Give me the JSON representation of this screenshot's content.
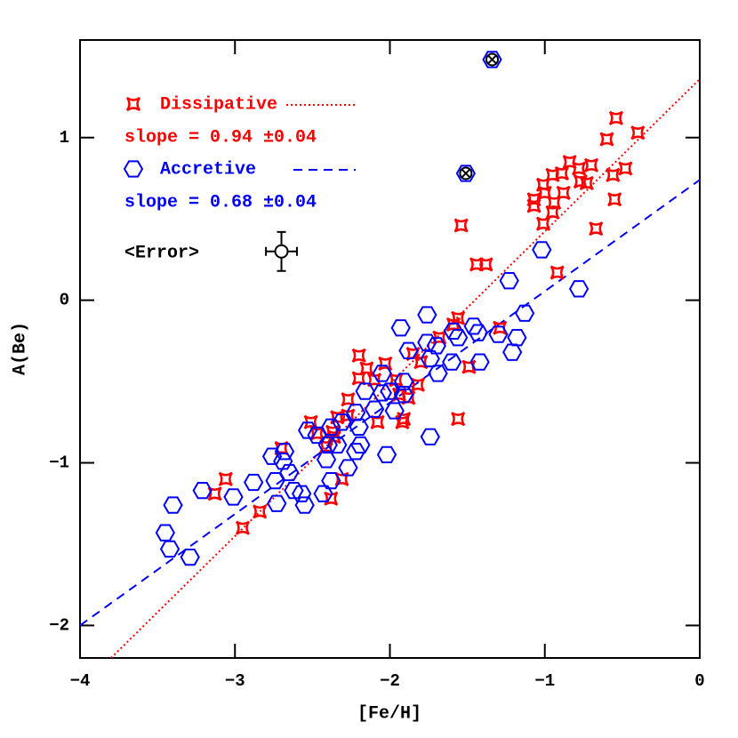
{
  "chart_data": {
    "type": "scatter",
    "x_label": "[Fe/H]",
    "y_label": "A(Be)",
    "xlim": [
      -4,
      0
    ],
    "ylim": [
      -2.2,
      1.6
    ],
    "xticks": [
      {
        "value": -4,
        "label": "−4"
      },
      {
        "value": -3,
        "label": "−3"
      },
      {
        "value": -2,
        "label": "−2"
      },
      {
        "value": -1,
        "label": "−1"
      },
      0
    ],
    "yticks": [
      {
        "value": -2,
        "label": "−2"
      },
      {
        "value": -1,
        "label": "−1"
      },
      0,
      1
    ],
    "series": [
      {
        "name": "Dissipative",
        "color": "#ff0000",
        "marker": "star",
        "slope_label": "slope = 0.94 ±0.04",
        "fit": {
          "style": "dotted",
          "x": [
            -3.8,
            0
          ],
          "values": [
            -2.2,
            1.36
          ]
        },
        "x": [
          -0.54,
          -0.4,
          -0.6,
          -0.48,
          -0.84,
          -0.78,
          -0.7,
          -0.89,
          -0.95,
          -1.01,
          -1.0,
          -1.07,
          -1.07,
          -0.94,
          -0.95,
          -0.88,
          -0.77,
          -0.73,
          -0.56,
          -0.55,
          -0.67,
          -1.01,
          -0.92,
          -1.54,
          -1.44,
          -1.38,
          -1.29,
          -1.56,
          -1.49,
          -1.56,
          -1.85,
          -1.8,
          -1.82,
          -1.88,
          -1.96,
          -2.03,
          -2.15,
          -2.1,
          -2.2,
          -2.2,
          -2.27,
          -2.34,
          -2.37,
          -2.41,
          -2.27,
          -2.51,
          -2.36,
          -2.47,
          -2.31,
          -2.38,
          -1.92,
          -2.08,
          -2.7,
          -2.84,
          -3.06,
          -3.13,
          -2.95,
          -1.94,
          -1.59,
          -1.68,
          -1.91
        ],
        "values": [
          1.12,
          1.03,
          0.99,
          0.81,
          0.85,
          0.81,
          0.83,
          0.78,
          0.77,
          0.71,
          0.66,
          0.62,
          0.58,
          0.6,
          0.54,
          0.66,
          0.73,
          0.72,
          0.77,
          0.62,
          0.44,
          0.47,
          0.17,
          0.46,
          0.22,
          0.22,
          -0.17,
          -0.11,
          -0.41,
          -0.73,
          -0.33,
          -0.38,
          -0.52,
          -0.6,
          -0.49,
          -0.39,
          -0.42,
          -0.49,
          -0.34,
          -0.48,
          -0.61,
          -0.72,
          -0.81,
          -0.9,
          -0.71,
          -0.75,
          -0.84,
          -0.82,
          -1.1,
          -1.22,
          -0.75,
          -0.75,
          -0.91,
          -1.3,
          -1.1,
          -1.19,
          -1.4,
          -0.58,
          -0.15,
          -0.23,
          -0.73
        ]
      },
      {
        "name": "Accretive",
        "color": "#0000ff",
        "marker": "hexagon",
        "slope_label": "slope = 0.68 ±0.04",
        "fit": {
          "style": "dashed",
          "x": [
            -4,
            0
          ],
          "values": [
            -2.0,
            0.74
          ]
        },
        "x": [
          -1.02,
          -0.78,
          -1.23,
          -1.13,
          -1.18,
          -1.21,
          -1.42,
          -1.3,
          -1.56,
          -1.59,
          -1.46,
          -1.43,
          -1.76,
          -1.93,
          -1.76,
          -1.7,
          -1.74,
          -1.69,
          -1.6,
          -1.88,
          -1.91,
          -1.91,
          -2.05,
          -2.0,
          -2.05,
          -1.97,
          -1.74,
          -2.02,
          -2.16,
          -2.1,
          -2.22,
          -2.2,
          -2.19,
          -2.22,
          -2.27,
          -2.31,
          -2.38,
          -2.4,
          -2.41,
          -2.38,
          -2.43,
          -2.34,
          -2.47,
          -2.53,
          -2.57,
          -2.55,
          -2.73,
          -2.74,
          -2.69,
          -2.68,
          -2.76,
          -2.88,
          -3.01,
          -3.21,
          -3.4,
          -3.45,
          -3.42,
          -3.29,
          -2.65,
          -2.62
        ],
        "values": [
          0.31,
          0.07,
          0.12,
          -0.08,
          -0.23,
          -0.32,
          -0.38,
          -0.21,
          -0.23,
          -0.19,
          -0.16,
          -0.2,
          -0.09,
          -0.17,
          -0.26,
          -0.28,
          -0.36,
          -0.45,
          -0.38,
          -0.31,
          -0.58,
          -0.5,
          -0.45,
          -0.56,
          -0.57,
          -0.68,
          -0.84,
          -0.95,
          -0.56,
          -0.67,
          -0.69,
          -0.78,
          -0.89,
          -0.93,
          -1.03,
          -0.75,
          -0.78,
          -0.89,
          -0.98,
          -1.11,
          -1.19,
          -0.89,
          -0.83,
          -0.8,
          -1.19,
          -1.26,
          -1.25,
          -1.11,
          -0.99,
          -0.93,
          -0.96,
          -1.12,
          -1.21,
          -1.17,
          -1.26,
          -1.43,
          -1.53,
          -1.58,
          -1.06,
          -1.17
        ]
      }
    ],
    "highlighted": {
      "color": "#0000ff",
      "x": [
        -1.34,
        -1.51
      ],
      "values": [
        1.48,
        0.78
      ]
    },
    "error_bar": {
      "label": "<Error>",
      "x": -2.7,
      "y": 0.3,
      "xerr": 0.1,
      "yerr": 0.12
    }
  }
}
